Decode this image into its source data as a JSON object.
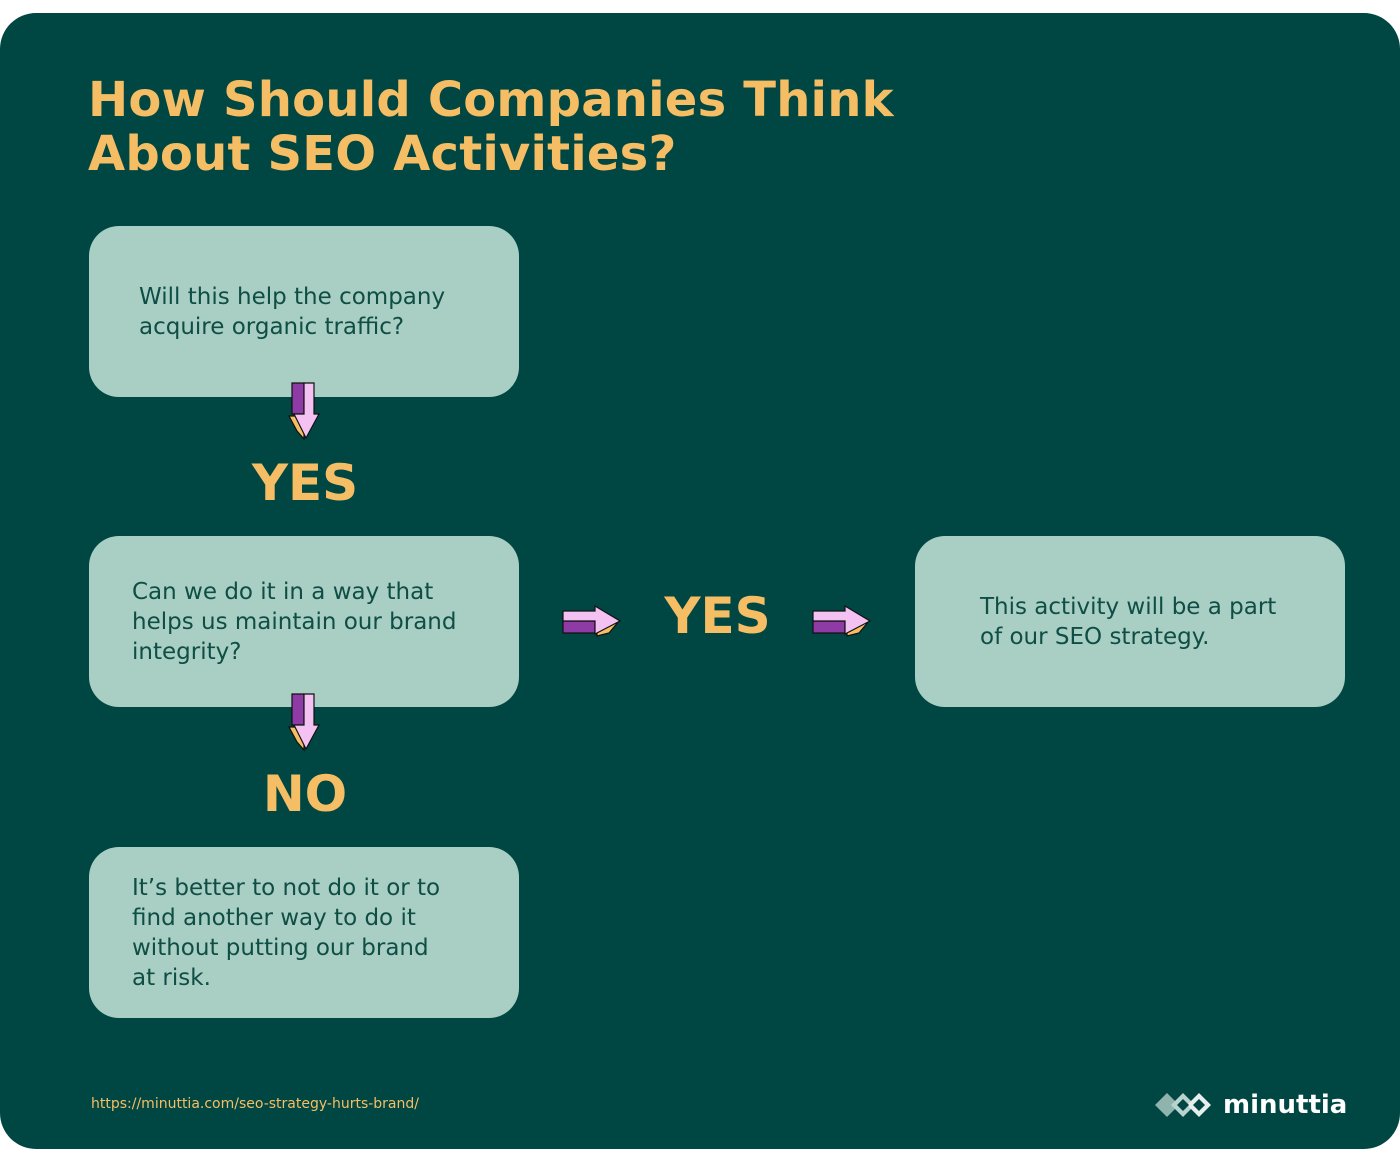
{
  "title": {
    "line1": "How Should Companies Think",
    "line2": "About SEO Activities?"
  },
  "flow": {
    "q1": "Will this help the company acquire organic traffic?",
    "q1_yes": "YES",
    "q2": "Can we do it in a way that helps us maintain our brand integrity?",
    "q2_yes": "YES",
    "q2_no": "NO",
    "outcome_yes": "This activity will be a part of our SEO strategy.",
    "outcome_no": "It’s better to not do it or to find another way to do it without putting our brand at risk."
  },
  "footer": {
    "source_url": "https://minuttia.com/seo-strategy-hurts-brand/",
    "brand": "minuttia"
  },
  "colors": {
    "background": "#004743",
    "accent": "#F6BE64",
    "box": "#A9CEC4",
    "box_text": "#0E4E44",
    "arrow_purple": "#8E3BA6",
    "arrow_pink": "#F4C2F2",
    "arrow_side": "#F6BE64"
  },
  "icons": {
    "arrow_down": "arrow-down-icon",
    "arrow_right": "arrow-right-icon",
    "logo": "minuttia-logo-icon"
  }
}
